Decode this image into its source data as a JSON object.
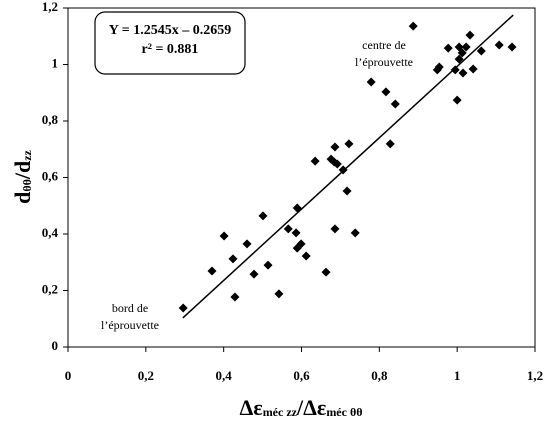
{
  "chart_data": {
    "type": "scatter",
    "equation": [
      "Y = 1.2545x – 0.2659",
      "r² = 0.881"
    ],
    "x_label": [
      "Δε",
      "méc zz",
      "/Δε",
      "méc θθ"
    ],
    "y_label": [
      "d",
      "θθ",
      "/d",
      "zz"
    ],
    "annotations": [
      [
        "centre de",
        "l’éprouvette"
      ],
      [
        "bord de",
        "l’éprouvette"
      ]
    ],
    "xlim": [
      0,
      1.2
    ],
    "ylim": [
      0,
      1.2
    ],
    "xticks": [
      0,
      {
        "value": 0.2,
        "label": "0,2"
      },
      {
        "value": 0.4,
        "label": "0,4"
      },
      {
        "value": 0.6,
        "label": "0,6"
      },
      {
        "value": 0.8,
        "label": "0,8"
      },
      1,
      {
        "value": 1.2,
        "label": "1,2"
      }
    ],
    "yticks": [
      0,
      {
        "value": 0.2,
        "label": "0,2"
      },
      {
        "value": 0.4,
        "label": "0,4"
      },
      {
        "value": 0.6,
        "label": "0,6"
      },
      {
        "value": 0.8,
        "label": "0,8"
      },
      1,
      {
        "value": 1.2,
        "label": "1,2"
      }
    ],
    "color": "#000000",
    "x": [
      0.296,
      0.37,
      0.401,
      0.424,
      0.429,
      0.46,
      0.478,
      0.501,
      0.514,
      0.542,
      0.566,
      0.586,
      0.589,
      0.589,
      0.599,
      0.612,
      0.635,
      0.663,
      0.676,
      0.684,
      0.686,
      0.686,
      0.692,
      0.707,
      0.717,
      0.722,
      0.738,
      0.779,
      0.817,
      0.828,
      0.841,
      0.887,
      0.949,
      0.954,
      0.977,
      0.995,
      1.0,
      1.005,
      1.005,
      1.013,
      1.015,
      1.023,
      1.033,
      1.041,
      1.062,
      1.108,
      1.141
    ],
    "values": [
      0.138,
      0.269,
      0.393,
      0.312,
      0.177,
      0.365,
      0.258,
      0.464,
      0.29,
      0.188,
      0.418,
      0.404,
      0.492,
      0.35,
      0.365,
      0.322,
      0.658,
      0.265,
      0.665,
      0.655,
      0.708,
      0.418,
      0.648,
      0.627,
      0.552,
      0.719,
      0.404,
      0.938,
      0.903,
      0.719,
      0.86,
      1.136,
      0.981,
      0.991,
      1.058,
      0.981,
      0.874,
      1.062,
      1.019,
      1.041,
      0.97,
      1.062,
      1.104,
      0.984,
      1.048,
      1.069,
      1.062
    ],
    "trendline": {
      "x": [
        0.295,
        1.144
      ],
      "y": [
        0.103,
        1.175
      ]
    }
  }
}
